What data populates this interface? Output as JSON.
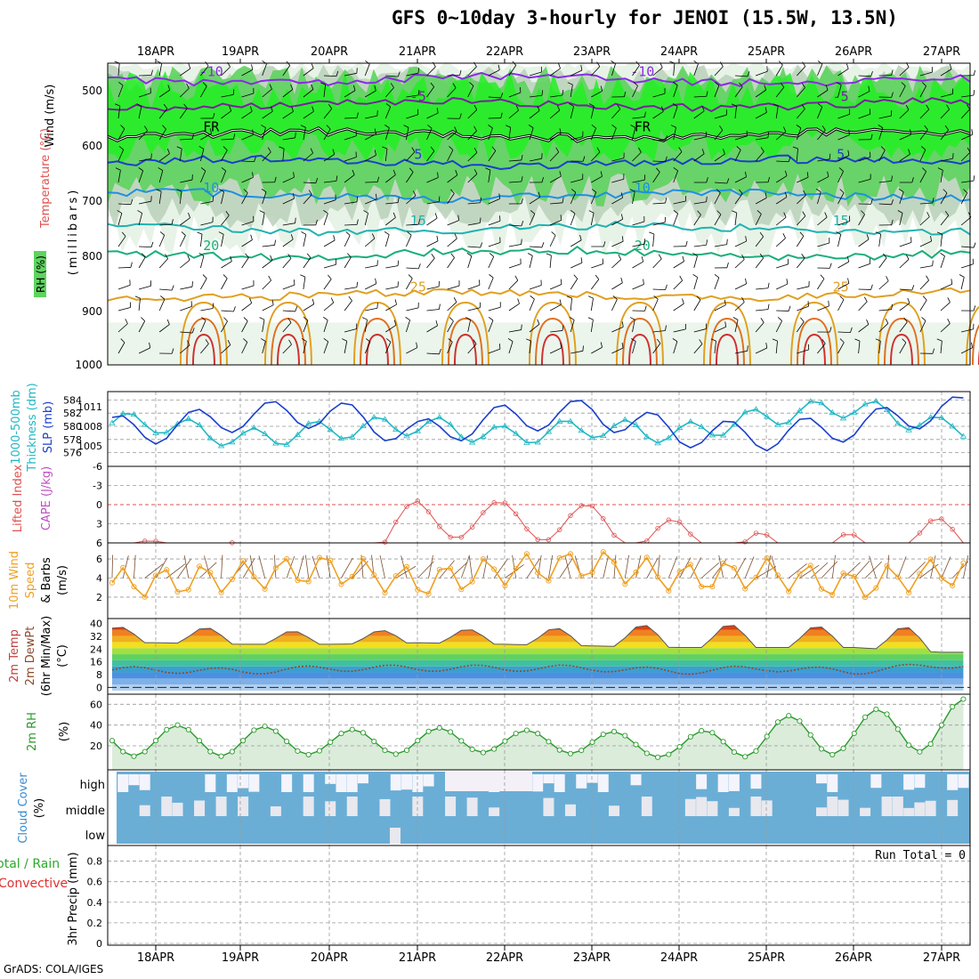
{
  "header": {
    "title": "GFS 0~10day 3-hourly for JENOI (15.5W, 13.5N)",
    "credit": "GrADS: COLA/IGES"
  },
  "chart_data": {
    "type": "meteogram",
    "dates": [
      "18APR",
      "19APR",
      "20APR",
      "21APR",
      "22APR",
      "23APR",
      "24APR",
      "25APR",
      "26APR",
      "27APR"
    ],
    "colors": {
      "rh_light": "#e6f2e6",
      "rh_mid": "#bcd3bc",
      "rh_green": "#5ed35e",
      "rh_bright": "#22ee22",
      "slp": "#1a3fcc",
      "thickness": "#21b8c4",
      "lifted_index": "#e05050",
      "wind_speed": "#f0a020",
      "cloud_blue": "#6aaed6",
      "rh2m": "#2a9a2a",
      "dewpoint": "#8b4a2b"
    },
    "panels": [
      {
        "id": "upper_air",
        "labels": [
          "Wind (m/s)",
          "Temperature (°C)",
          "RH (%)",
          "(millibars)"
        ],
        "yticks": [
          500,
          600,
          700,
          800,
          900,
          1000
        ],
        "temperature_contours": [
          {
            "value": "-10",
            "color": "#8a2be2",
            "level": 480
          },
          {
            "value": "-5",
            "color": "#7b1fa2",
            "level": 525
          },
          {
            "value": "FR",
            "color": "#000000",
            "level": 580
          },
          {
            "value": "5",
            "color": "#1a3fcc",
            "level": 630
          },
          {
            "value": "10",
            "color": "#1e90e0",
            "level": 690
          },
          {
            "value": "15",
            "color": "#20b2b0",
            "level": 750
          },
          {
            "value": "20",
            "color": "#1aae7a",
            "level": 795
          },
          {
            "value": "25",
            "color": "#e0a020",
            "level": 870
          }
        ]
      },
      {
        "id": "slp_thickness",
        "labels": [
          "1000-500mb",
          "Thickness (dm)",
          "SLP (mb)"
        ],
        "thickness_ticks": [
          576,
          578,
          580,
          582,
          584
        ],
        "slp_ticks": [
          1005,
          1008,
          1011
        ]
      },
      {
        "id": "stability",
        "labels": [
          "Lifted Index",
          "CAPE (J/kg)"
        ],
        "yticks": [
          -6,
          -3,
          0,
          3,
          6
        ]
      },
      {
        "id": "wind10m",
        "labels": [
          "10m Wind",
          "Speed",
          "& Barbs",
          "(m/s)"
        ],
        "yticks": [
          2,
          4,
          6
        ]
      },
      {
        "id": "temp2m",
        "labels": [
          "2m Temp",
          "2m DewPt",
          "(6hr Min/Max)",
          "(°C)"
        ],
        "yticks": [
          0,
          8,
          16,
          24,
          32,
          40
        ]
      },
      {
        "id": "rh2m",
        "labels": [
          "2m RH",
          "(%)"
        ],
        "yticks": [
          20,
          40,
          60
        ]
      },
      {
        "id": "cloud",
        "labels": [
          "Cloud Cover",
          "(%)"
        ],
        "levels": [
          "high",
          "middle",
          "low"
        ]
      },
      {
        "id": "precip",
        "labels": [
          "Total / Rain",
          "Convective",
          "3hr Precip (mm)"
        ],
        "yticks": [
          "0",
          "0.2",
          "0.4",
          "0.6",
          "0.8"
        ],
        "run_total": "Run Total = 0"
      }
    ],
    "daily_series": {
      "slp": [
        1007.5,
        1009.5,
        1010.0,
        1006.8,
        1009.2,
        1010.0,
        1007.0,
        1006.5,
        1008.0,
        1010.4
      ],
      "thickness": [
        580.5,
        578.0,
        579.5,
        580.2,
        578.5,
        579.8,
        578.8,
        581.5,
        583.0,
        579.8
      ],
      "lifted_index_min": [
        5.5,
        5.8,
        6.0,
        -0.8,
        -0.5,
        0.0,
        2.5,
        4.5,
        4.5,
        2.0
      ],
      "wind_speed": [
        3.5,
        4.2,
        5.0,
        3.5,
        4.8,
        5.5,
        4.0,
        4.5,
        3.2,
        4.6
      ],
      "temp_max": [
        38,
        37,
        34,
        37,
        36,
        38,
        40,
        39,
        38,
        38
      ],
      "temp_min": [
        28,
        27,
        27,
        28,
        27,
        26,
        25,
        25,
        25,
        22
      ],
      "dewpoint": [
        11,
        10,
        12,
        12,
        12,
        12,
        10,
        12,
        10,
        14
      ],
      "rh2m_max": [
        40,
        40,
        35,
        38,
        35,
        35,
        30,
        48,
        52,
        65
      ],
      "rh2m_min": [
        10,
        10,
        12,
        12,
        14,
        12,
        8,
        10,
        12,
        15
      ]
    }
  }
}
